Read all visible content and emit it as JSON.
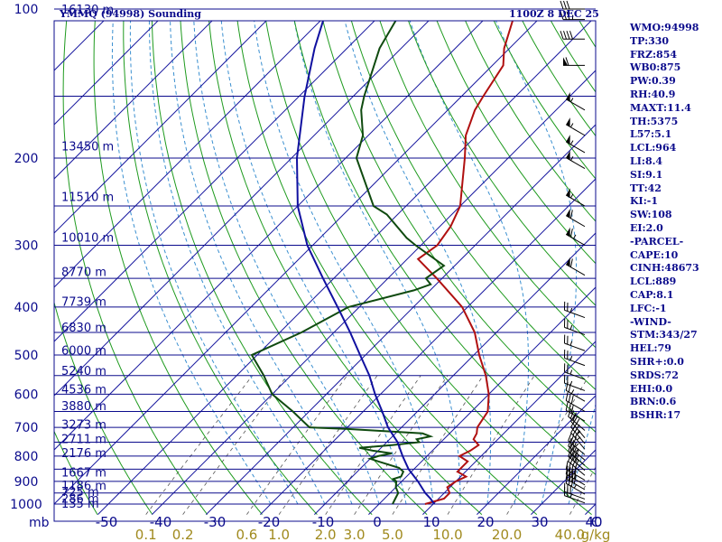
{
  "header": {
    "station": "YMMQ (94998) Sounding",
    "time": "1100Z  8 DEC 25"
  },
  "indices": [
    "WMO:94998",
    "TP:330",
    "FRZ:854",
    "WB0:875",
    "PW:0.39",
    "RH:40.9",
    "MAXT:11.4",
    "TH:5375",
    "L57:5.1",
    "LCL:964",
    "LI:8.4",
    "SI:9.1",
    "TT:42",
    "KI:-1",
    "SW:108",
    "EI:2.0",
    "-PARCEL-",
    "CAPE:10",
    "CINH:48673",
    "LCL:889",
    "CAP:8.1",
    "LFC:-1",
    "-WIND-",
    "STM:343/27",
    "HEL:79",
    "SHR+:0.0",
    "SRDS:72",
    "EHI:0.0",
    "BRN:0.6",
    "BSHR:17"
  ],
  "colors": {
    "isobar": "#0b0b8c",
    "isotherm": "#1a1aa0",
    "dry_adiabat": "#1e9a1e",
    "moist_adiabat": "#3a8fd0",
    "mixing_ratio": "#555555",
    "temperature": "#b01010",
    "dewpoint": "#0f4a0f",
    "parcel": "#1010a0",
    "wind_barb": "#000000",
    "axis_text": "#0b0b8c",
    "mixratio_text": "#a08a1e"
  },
  "chart_data": {
    "type": "skew-t",
    "x_axis_unit": "C",
    "y_axis_unit": "mb",
    "mixing_ratio_unit": "g/kg",
    "pressure_levels": [
      1000,
      900,
      800,
      700,
      600,
      500,
      400,
      300,
      200,
      100
    ],
    "pressure_tick_labels": [
      "1000",
      "900",
      "800",
      "700",
      "600",
      "500",
      "400",
      "300",
      "200",
      "100"
    ],
    "temperature_ticks": [
      -50,
      -40,
      -30,
      -20,
      -10,
      0,
      10,
      20,
      30,
      40
    ],
    "temperature_tick_labels": [
      "-50",
      "-40",
      "-30",
      "-20",
      "-10",
      "0",
      "10",
      "20",
      "30",
      "40"
    ],
    "mixing_ratio_lines": [
      0.1,
      0.2,
      0.6,
      1.0,
      2.0,
      3.0,
      5.0,
      10.0,
      20.0,
      40.0
    ],
    "mixing_ratio_labels": [
      "0.1",
      "0.2",
      "0.6",
      "1.0",
      "2.0",
      "3.0",
      "5.0",
      "10.0",
      "20.0",
      "40.0"
    ],
    "height_labels": [
      {
        "p": 996,
        "label": "135 m"
      },
      {
        "p": 974,
        "label": "286 m"
      },
      {
        "p": 943,
        "label": "725 m"
      },
      {
        "p": 916,
        "label": "1186 m"
      },
      {
        "p": 861,
        "label": "1667 m"
      },
      {
        "p": 787,
        "label": "2176 m"
      },
      {
        "p": 737,
        "label": "2711 m"
      },
      {
        "p": 689,
        "label": "3273 m"
      },
      {
        "p": 633,
        "label": "3880 m"
      },
      {
        "p": 585,
        "label": "4536 m"
      },
      {
        "p": 537,
        "label": "5240 m"
      },
      {
        "p": 489,
        "label": "6000 m"
      },
      {
        "p": 439,
        "label": "6830 m"
      },
      {
        "p": 389,
        "label": "7739 m"
      },
      {
        "p": 339,
        "label": "8770 m"
      },
      {
        "p": 289,
        "label": "10010 m"
      },
      {
        "p": 239,
        "label": "11510 m"
      },
      {
        "p": 189,
        "label": "13450 m"
      },
      {
        "p": 100,
        "label": "16130 m"
      }
    ],
    "series": [
      {
        "points": [
          [
            1000,
            8.5
          ],
          [
            975,
            11
          ],
          [
            950,
            11
          ],
          [
            925,
            9.5
          ],
          [
            900,
            10
          ],
          [
            880,
            11
          ],
          [
            860,
            8.5
          ],
          [
            820,
            8.5
          ],
          [
            800,
            6
          ],
          [
            780,
            7
          ],
          [
            760,
            7.5
          ],
          [
            740,
            5.5
          ],
          [
            720,
            5
          ],
          [
            700,
            4
          ],
          [
            650,
            3
          ],
          [
            600,
            0
          ],
          [
            550,
            -4
          ],
          [
            500,
            -9
          ],
          [
            450,
            -14
          ],
          [
            400,
            -21
          ],
          [
            350,
            -31
          ],
          [
            320,
            -38
          ],
          [
            300,
            -37
          ],
          [
            275,
            -38
          ],
          [
            250,
            -40
          ],
          [
            230,
            -43
          ],
          [
            200,
            -48
          ],
          [
            180,
            -52
          ],
          [
            160,
            -55
          ],
          [
            150,
            -56
          ],
          [
            130,
            -58
          ],
          [
            120,
            -61
          ],
          [
            100,
            -66
          ]
        ]
      },
      {
        "points": [
          [
            1000,
            2.5
          ],
          [
            975,
            2
          ],
          [
            950,
            1.5
          ],
          [
            925,
            0
          ],
          [
            900,
            -1
          ],
          [
            890,
            -2
          ],
          [
            880,
            -1
          ],
          [
            860,
            -1.5
          ],
          [
            845,
            -3
          ],
          [
            820,
            -8
          ],
          [
            810,
            -10
          ],
          [
            800,
            -9
          ],
          [
            790,
            -7
          ],
          [
            780,
            -11
          ],
          [
            770,
            -14
          ],
          [
            760,
            -8.5
          ],
          [
            750,
            -4
          ],
          [
            740,
            -5
          ],
          [
            730,
            -3
          ],
          [
            720,
            -5
          ],
          [
            705,
            -20
          ],
          [
            700,
            -27
          ],
          [
            650,
            -33
          ],
          [
            600,
            -40
          ],
          [
            550,
            -45
          ],
          [
            500,
            -51
          ],
          [
            450,
            -46
          ],
          [
            400,
            -42
          ],
          [
            370,
            -33
          ],
          [
            360,
            -31
          ],
          [
            350,
            -33
          ],
          [
            330,
            -32
          ],
          [
            300,
            -41
          ],
          [
            290,
            -44
          ],
          [
            260,
            -52
          ],
          [
            250,
            -56
          ],
          [
            200,
            -68
          ],
          [
            180,
            -71
          ],
          [
            160,
            -76
          ],
          [
            150,
            -78
          ],
          [
            120,
            -84
          ],
          [
            100,
            -87
          ]
        ]
      },
      {
        "points": [
          [
            1000,
            10.2
          ],
          [
            975,
            8.5
          ],
          [
            950,
            6.5
          ],
          [
            900,
            3
          ],
          [
            850,
            -1
          ],
          [
            800,
            -4.5
          ],
          [
            750,
            -8
          ],
          [
            700,
            -12.5
          ],
          [
            650,
            -16.5
          ],
          [
            600,
            -21
          ],
          [
            550,
            -25.5
          ],
          [
            500,
            -31
          ],
          [
            450,
            -37
          ],
          [
            400,
            -44
          ],
          [
            350,
            -52
          ],
          [
            300,
            -61
          ],
          [
            250,
            -70
          ],
          [
            200,
            -79
          ],
          [
            150,
            -89
          ],
          [
            120,
            -96
          ],
          [
            100,
            -101
          ]
        ]
      }
    ],
    "wind_barbs": [
      {
        "p": 995,
        "dir": 290,
        "kt": 25
      },
      {
        "p": 977,
        "dir": 290,
        "kt": 30
      },
      {
        "p": 955,
        "dir": 300,
        "kt": 35
      },
      {
        "p": 935,
        "dir": 300,
        "kt": 40
      },
      {
        "p": 915,
        "dir": 300,
        "kt": 40
      },
      {
        "p": 895,
        "dir": 300,
        "kt": 40
      },
      {
        "p": 875,
        "dir": 310,
        "kt": 40
      },
      {
        "p": 855,
        "dir": 310,
        "kt": 40
      },
      {
        "p": 835,
        "dir": 310,
        "kt": 40
      },
      {
        "p": 815,
        "dir": 310,
        "kt": 35
      },
      {
        "p": 795,
        "dir": 310,
        "kt": 35
      },
      {
        "p": 775,
        "dir": 320,
        "kt": 35
      },
      {
        "p": 755,
        "dir": 320,
        "kt": 35
      },
      {
        "p": 735,
        "dir": 320,
        "kt": 30
      },
      {
        "p": 710,
        "dir": 310,
        "kt": 30
      },
      {
        "p": 680,
        "dir": 300,
        "kt": 30
      },
      {
        "p": 650,
        "dir": 300,
        "kt": 30
      },
      {
        "p": 620,
        "dir": 300,
        "kt": 25
      },
      {
        "p": 590,
        "dir": 290,
        "kt": 25
      },
      {
        "p": 560,
        "dir": 290,
        "kt": 25
      },
      {
        "p": 525,
        "dir": 290,
        "kt": 25
      },
      {
        "p": 490,
        "dir": 290,
        "kt": 25
      },
      {
        "p": 455,
        "dir": 290,
        "kt": 25
      },
      {
        "p": 420,
        "dir": 290,
        "kt": 25
      },
      {
        "p": 345,
        "dir": 300,
        "kt": 60
      },
      {
        "p": 300,
        "dir": 300,
        "kt": 65
      },
      {
        "p": 275,
        "dir": 300,
        "kt": 60
      },
      {
        "p": 250,
        "dir": 300,
        "kt": 55
      },
      {
        "p": 210,
        "dir": 300,
        "kt": 55
      },
      {
        "p": 195,
        "dir": 300,
        "kt": 55
      },
      {
        "p": 180,
        "dir": 300,
        "kt": 55
      },
      {
        "p": 160,
        "dir": 300,
        "kt": 55
      },
      {
        "p": 130,
        "dir": 270,
        "kt": 60
      },
      {
        "p": 115,
        "dir": 270,
        "kt": 40
      },
      {
        "p": 105,
        "dir": 270,
        "kt": 35
      },
      {
        "p": 100,
        "dir": 270,
        "kt": 30
      }
    ]
  }
}
